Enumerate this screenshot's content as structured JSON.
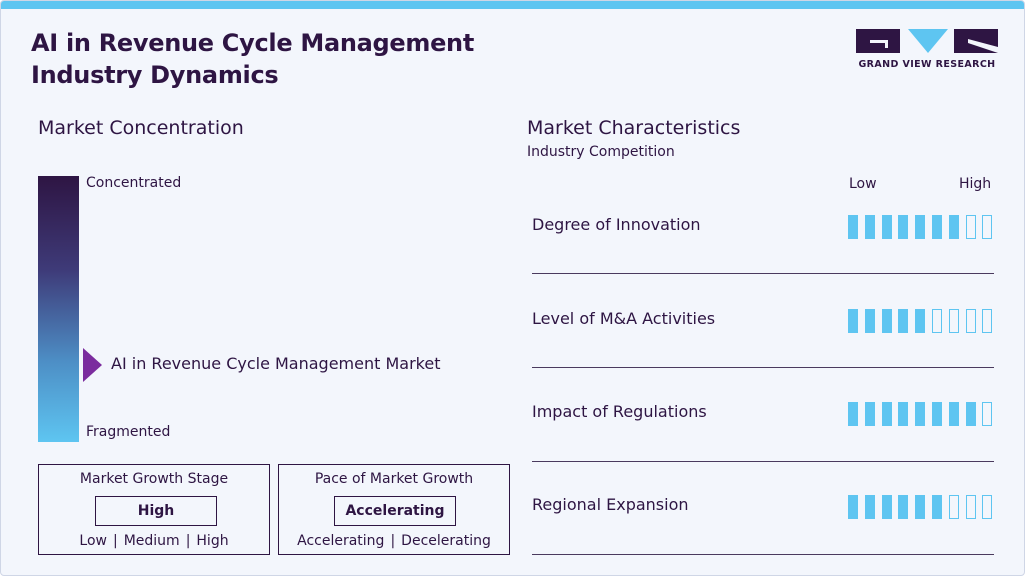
{
  "header": {
    "title_line1": "AI in Revenue Cycle Management",
    "title_line2": "Industry Dynamics",
    "logo_text": "GRAND VIEW RESEARCH"
  },
  "concentration": {
    "heading": "Market Concentration",
    "top_label": "Concentrated",
    "bottom_label": "Fragmented",
    "market_label": "AI in Revenue Cycle Management Market",
    "pointer_level": 0.29
  },
  "growth_stage": {
    "title": "Market Growth Stage",
    "value": "High",
    "options": [
      "Low",
      "Medium",
      "High"
    ]
  },
  "growth_pace": {
    "title": "Pace of Market Growth",
    "value": "Accelerating",
    "options": [
      "Accelerating",
      "Decelerating"
    ]
  },
  "characteristics": {
    "heading": "Market Characteristics",
    "subheading": "Industry Competition",
    "low_label": "Low",
    "high_label": "High",
    "total_ticks": 9,
    "rows": [
      {
        "label": "Degree of Innovation",
        "filled": 7
      },
      {
        "label": "Level of M&A Activities",
        "filled": 5
      },
      {
        "label": "Impact of Regulations",
        "filled": 8
      },
      {
        "label": "Regional Expansion",
        "filled": 6
      }
    ]
  },
  "colors": {
    "dark_purple": "#2e1543",
    "light_blue": "#5ec5f1",
    "pointer_purple": "#7b2c9e"
  }
}
